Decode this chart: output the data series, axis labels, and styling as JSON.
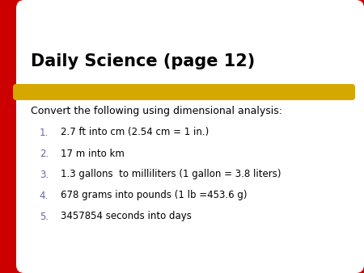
{
  "title": "Daily Science (page 12)",
  "intro": "Convert the following using dimensional analysis:",
  "items": [
    "2.7 ft into cm (2.54 cm = 1 in.)",
    "17 m into km",
    "1.3 gallons  to milliliters (1 gallon = 3.8 liters)",
    "678 grams into pounds (1 lb =453.6 g)",
    "3457854 seconds into days"
  ],
  "bg_color": "#ffffff",
  "red_color": "#cc0000",
  "gold_color": "#d4a800",
  "title_color": "#000000",
  "text_color": "#000000",
  "number_color": "#6666aa"
}
